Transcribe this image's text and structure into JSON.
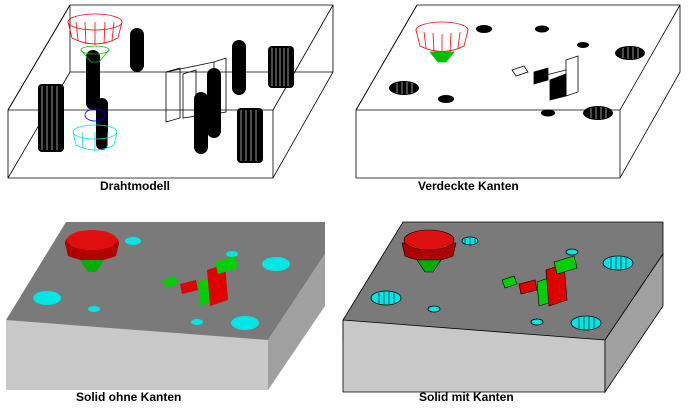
{
  "panels": [
    {
      "id": "wireframe",
      "caption": "Drahtmodell"
    },
    {
      "id": "hidden",
      "caption": "Verdeckte Kanten"
    },
    {
      "id": "solid_no_edges",
      "caption": "Solid ohne Kanten"
    },
    {
      "id": "solid_edges",
      "caption": "Solid mit Kanten"
    }
  ],
  "colors": {
    "background": "#ffffff",
    "outline": "#000000",
    "tool_head": "#ff0000",
    "tool_tip": "#00c000",
    "wire_blue": "#0000ff",
    "wire_cyan": "#00e0e0",
    "solid_top": "#7a7a7a",
    "solid_front": "#c8c8c8",
    "solid_side": "#a0a0a0",
    "hole_cyan": "#00e5e5",
    "pocket_red": "#e00000",
    "pocket_green": "#00d000"
  }
}
